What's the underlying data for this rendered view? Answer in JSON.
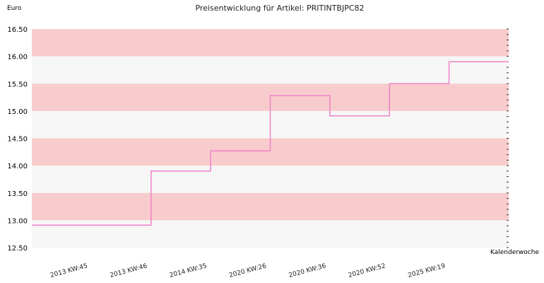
{
  "chart_data": {
    "type": "line",
    "step": true,
    "title": "Preisentwicklung für Artikel: PRITINTBJPC82",
    "ylabel": "Euro",
    "xlabel": "Kalenderwoche",
    "ylim": [
      12.5,
      16.5
    ],
    "yticks": [
      "12.50",
      "13.00",
      "13.50",
      "14.00",
      "14.50",
      "15.00",
      "15.50",
      "16.00",
      "16.50"
    ],
    "categories": [
      "2013 KW:45",
      "2013 KW:46",
      "2014 KW:35",
      "2020 KW:26",
      "2020 KW:36",
      "2020 KW:52",
      "2025 KW:19"
    ],
    "series": [
      {
        "values": [
          12.91,
          13.9,
          14.27,
          15.28,
          14.91,
          15.5,
          15.9
        ]
      }
    ],
    "band_colors": [
      "#f8cccc",
      "#f6f6f6"
    ],
    "line_color": "#ee82c8",
    "grid": true
  }
}
